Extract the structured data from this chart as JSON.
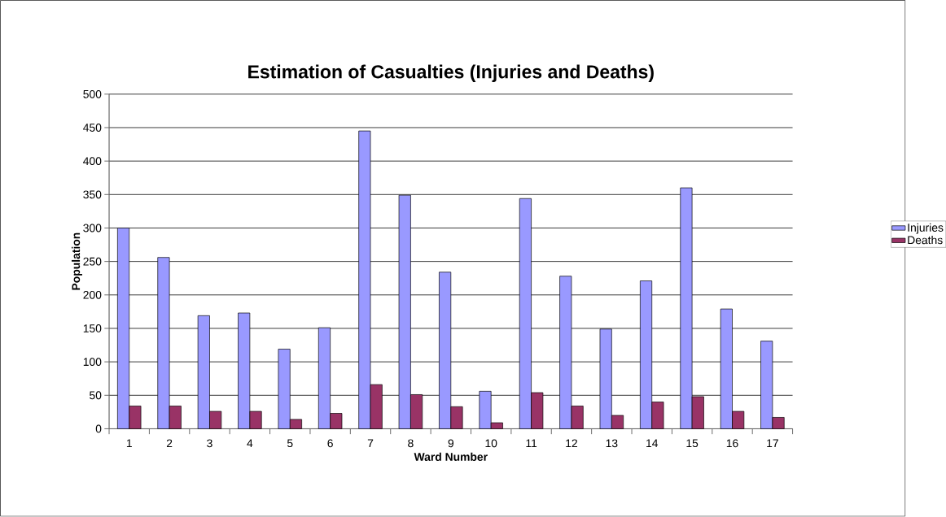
{
  "chart_data": {
    "type": "bar",
    "title": "Estimation of Casualties (Injuries and Deaths)",
    "xlabel": "Ward Number",
    "ylabel": "Population",
    "categories": [
      "1",
      "2",
      "3",
      "4",
      "5",
      "6",
      "7",
      "8",
      "9",
      "10",
      "11",
      "12",
      "13",
      "14",
      "15",
      "16",
      "17"
    ],
    "series": [
      {
        "name": "Injuries",
        "color": "#9999ff",
        "values": [
          300,
          256,
          169,
          173,
          119,
          151,
          445,
          349,
          234,
          56,
          344,
          228,
          149,
          221,
          360,
          179,
          131
        ]
      },
      {
        "name": "Deaths",
        "color": "#993366",
        "values": [
          34,
          34,
          26,
          26,
          14,
          23,
          66,
          51,
          33,
          9,
          54,
          34,
          20,
          40,
          48,
          26,
          17
        ]
      }
    ],
    "ylim": [
      0,
      500
    ],
    "yticks": [
      0,
      50,
      100,
      150,
      200,
      250,
      300,
      350,
      400,
      450,
      500
    ],
    "grid": "y",
    "legend": "right"
  }
}
